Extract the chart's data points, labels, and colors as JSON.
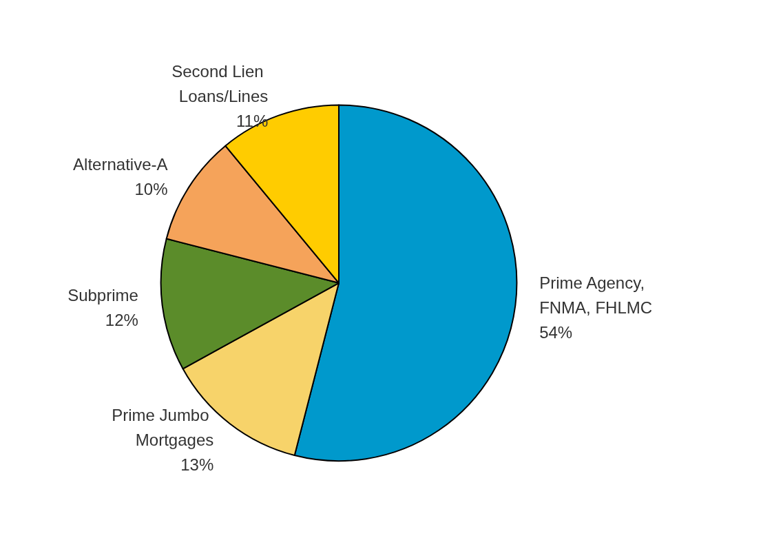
{
  "chart_data": {
    "type": "pie",
    "categories": [
      "Prime Agency, FNMA, FHLMC",
      "Prime Jumbo Mortgages",
      "Subprime",
      "Alternative-A",
      "Second Lien Loans/Lines"
    ],
    "values": [
      54,
      13,
      12,
      10,
      11
    ],
    "value_labels": [
      "54%",
      "13%",
      "12%",
      "10%",
      "11%"
    ],
    "colors": [
      "#0099cc",
      "#f7d36a",
      "#5b8c2a",
      "#f5a35a",
      "#ffcc00"
    ]
  }
}
